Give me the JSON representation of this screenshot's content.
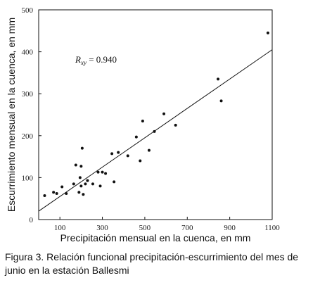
{
  "caption": "Figura 3. Relación funcional precipitación-escurrimiento del mes de junio en la estación Ballesmi",
  "chart_data": {
    "type": "scatter",
    "xlabel": "Precipitación mensual en la cuenca, en mm",
    "ylabel": "Escurrimiento mensual en la cuenca, en mm",
    "xlim": [
      0,
      1100
    ],
    "ylim": [
      0,
      500
    ],
    "xticks": [
      "100",
      "300",
      "500",
      "700",
      "900",
      "1100"
    ],
    "yticks": [
      "0",
      "100",
      "200",
      "300",
      "400",
      "500"
    ],
    "annotation": {
      "main": "R",
      "sub": "xy",
      "rest": " = 0.940"
    },
    "regression_line": {
      "x": [
        0,
        1100
      ],
      "y": [
        20,
        405
      ]
    },
    "points": [
      {
        "x": 28,
        "y": 57
      },
      {
        "x": 70,
        "y": 65
      },
      {
        "x": 85,
        "y": 62
      },
      {
        "x": 110,
        "y": 78
      },
      {
        "x": 130,
        "y": 62
      },
      {
        "x": 165,
        "y": 85
      },
      {
        "x": 175,
        "y": 130
      },
      {
        "x": 190,
        "y": 65
      },
      {
        "x": 195,
        "y": 100
      },
      {
        "x": 200,
        "y": 80
      },
      {
        "x": 200,
        "y": 127
      },
      {
        "x": 205,
        "y": 170
      },
      {
        "x": 210,
        "y": 60
      },
      {
        "x": 220,
        "y": 85
      },
      {
        "x": 230,
        "y": 93
      },
      {
        "x": 255,
        "y": 85
      },
      {
        "x": 280,
        "y": 113
      },
      {
        "x": 290,
        "y": 80
      },
      {
        "x": 300,
        "y": 113
      },
      {
        "x": 315,
        "y": 110
      },
      {
        "x": 345,
        "y": 157
      },
      {
        "x": 355,
        "y": 90
      },
      {
        "x": 375,
        "y": 160
      },
      {
        "x": 420,
        "y": 152
      },
      {
        "x": 460,
        "y": 197
      },
      {
        "x": 478,
        "y": 140
      },
      {
        "x": 490,
        "y": 235
      },
      {
        "x": 520,
        "y": 165
      },
      {
        "x": 545,
        "y": 210
      },
      {
        "x": 590,
        "y": 252
      },
      {
        "x": 645,
        "y": 225
      },
      {
        "x": 845,
        "y": 335
      },
      {
        "x": 860,
        "y": 283
      },
      {
        "x": 1080,
        "y": 445
      }
    ]
  }
}
